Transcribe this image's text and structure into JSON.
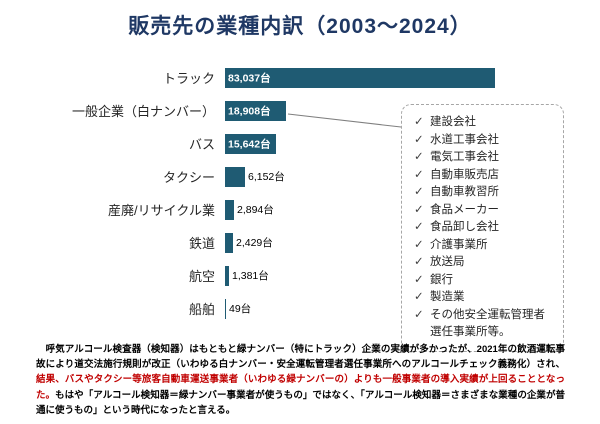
{
  "title": "販売先の業種内訳（2003～2024）",
  "chart_data": {
    "type": "bar",
    "orientation": "horizontal",
    "title": "販売先の業種内訳（2003～2024）",
    "categories": [
      "トラック",
      "一般企業（白ナンバー）",
      "バス",
      "タクシー",
      "産廃/リサイクル業",
      "鉄道",
      "航空",
      "船舶"
    ],
    "values": [
      83037,
      18908,
      15642,
      6152,
      2894,
      2429,
      1381,
      49
    ],
    "value_labels": [
      "83,037台",
      "18,908台",
      "15,642台",
      "6,152台",
      "2,894台",
      "2,429台",
      "1,381台",
      "49台"
    ],
    "xlim": [
      0,
      85000
    ],
    "grid": false,
    "legend": false,
    "bar_color": "#1F5B73",
    "inside_label_threshold": 15000
  },
  "callout": {
    "check_glyph": "✓",
    "items": [
      "建設会社",
      "水道工事会社",
      "電気工事会社",
      "自動車販売店",
      "自動車教習所",
      "食品メーカー",
      "食品卸し会社",
      "介護事業所",
      "放送局",
      "銀行",
      "製造業",
      "その他安全運転管理者選任事業所等。"
    ]
  },
  "footer": {
    "segments": [
      {
        "text": "　呼気アルコール検査器（検知器）はもともと緑ナンバー（特にトラック）企業の実績が多かったが、2021年の飲酒運転事故により道交法施行規則が改正（いわゆる白ナンバー・安全運転管理者選任事業所へのアルコールチェック義務化）され、",
        "color": "#000000"
      },
      {
        "text": "結果、バスやタクシー等旅客自動車運送事業者（いわゆる緑ナンバーの）よりも一般事業者の導入実績が上回ることとなった。",
        "color": "#C00000"
      },
      {
        "text": "もはや「アルコール検知器＝緑ナンバー事業者が使うもの」ではなく、「アルコール検知器＝さまざまな業種の企業が普通に使うもの」という時代になったと言える。",
        "color": "#000000"
      }
    ]
  }
}
